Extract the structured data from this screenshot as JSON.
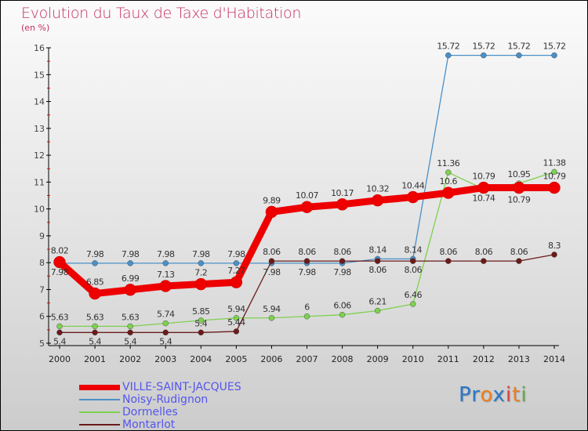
{
  "chart_data": {
    "type": "line",
    "title": "Evolution du Taux de Taxe d'Habitation",
    "subtitle": "(en %)",
    "xlabel": "",
    "ylabel": "",
    "ylim": [
      5,
      16
    ],
    "yticks": [
      "5",
      "6",
      "7",
      "8",
      "9",
      "10",
      "11",
      "12",
      "13",
      "14",
      "15",
      "16"
    ],
    "x": [
      "2000",
      "2001",
      "2002",
      "2003",
      "2004",
      "2005",
      "2006",
      "2007",
      "2008",
      "2009",
      "2010",
      "2011",
      "2012",
      "2013",
      "2014"
    ],
    "legend_position": "bottom-left",
    "series": [
      {
        "name": "VILLE-SAINT-JACQUES",
        "color": "#ee0000",
        "values": [
          8.02,
          6.85,
          6.99,
          7.13,
          7.2,
          7.27,
          9.89,
          10.07,
          10.17,
          10.32,
          10.44,
          10.6,
          10.79,
          10.79,
          10.79
        ]
      },
      {
        "name": "Noisy-Rudignon",
        "color": "#4a90c8",
        "values": [
          7.98,
          7.98,
          7.98,
          7.98,
          7.98,
          7.98,
          7.98,
          7.98,
          7.98,
          8.14,
          8.14,
          15.72,
          15.72,
          15.72,
          15.72
        ]
      },
      {
        "name": "Dormelles",
        "color": "#7ed050",
        "values": [
          5.63,
          5.63,
          5.63,
          5.74,
          5.85,
          5.94,
          5.94,
          6,
          6.06,
          6.21,
          6.46,
          11.36,
          10.74,
          10.95,
          11.38
        ]
      },
      {
        "name": "Montarlot",
        "color": "#6b1a1a",
        "values": [
          5.4,
          5.4,
          5.4,
          5.4,
          5.4,
          5.44,
          8.06,
          8.06,
          8.06,
          8.06,
          8.06,
          8.06,
          8.06,
          8.06,
          8.3
        ]
      }
    ]
  },
  "logo": {
    "text": "Proxiti",
    "letters": [
      "P",
      "r",
      "o",
      "x",
      "i",
      "t",
      "i"
    ],
    "colors": [
      "#2a78c8",
      "#2a78c8",
      "#f08020",
      "#2a78c8",
      "#e04040",
      "#f08020",
      "#60b040"
    ]
  }
}
